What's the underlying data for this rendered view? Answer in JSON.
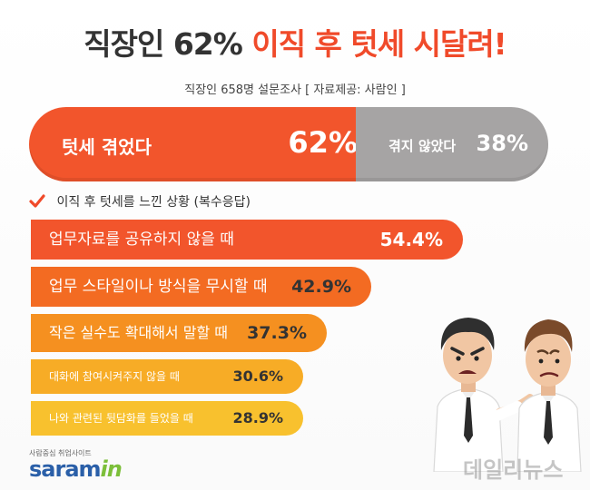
{
  "title": {
    "part1": "직장인 62%",
    "part2": "이직 후 텃세 시달려!"
  },
  "subtitle": "직장인 658명 설문조사 [ 자료제공: 사람인 ]",
  "split": {
    "yes": {
      "label": "텃세 겪었다",
      "value": "62%",
      "percent": 62
    },
    "no": {
      "label": "겪지 않았다",
      "value": "38%",
      "percent": 38
    }
  },
  "section_title": "이직 후 텃세를 느낀 상황 (복수응답)",
  "colors": {
    "accent": "#f04a2a",
    "yes": "#f2552c",
    "no": "#a6a4a4"
  },
  "chart_data": {
    "type": "bar",
    "categories": [
      "업무자료를  공유하지 않을 때",
      "업무 스타일이나 방식을 무시할 때",
      "작은 실수도 확대해서 말할 때",
      "대화에 참여시켜주지 않을 때",
      "나와 관련된 뒷담화를 들었을 때"
    ],
    "values": [
      54.4,
      42.9,
      37.3,
      30.6,
      28.9
    ],
    "value_labels": [
      "54.4%",
      "42.9%",
      "37.3%",
      "30.6%",
      "28.9%"
    ],
    "bar_colors": [
      "#f2552c",
      "#f36b22",
      "#f59020",
      "#f7ac26",
      "#f8c12e"
    ],
    "label_colors": [
      "#ffffff",
      "#ffffff",
      "#ffffff",
      "#ffffff",
      "#ffffff"
    ],
    "value_colors": [
      "#ffffff",
      "#333333",
      "#333333",
      "#333333",
      "#333333"
    ],
    "title": "이직 후 텃세를 느낀 상황 (복수응답)",
    "xlabel": "",
    "ylabel": ""
  },
  "logo": {
    "tagline": "사람중심 취업사이트",
    "brand": "saram",
    "brand_suffix": "in"
  },
  "watermark": "데일리뉴스",
  "icons": {
    "check": "check-icon",
    "characters": "office-workers-illustration"
  }
}
